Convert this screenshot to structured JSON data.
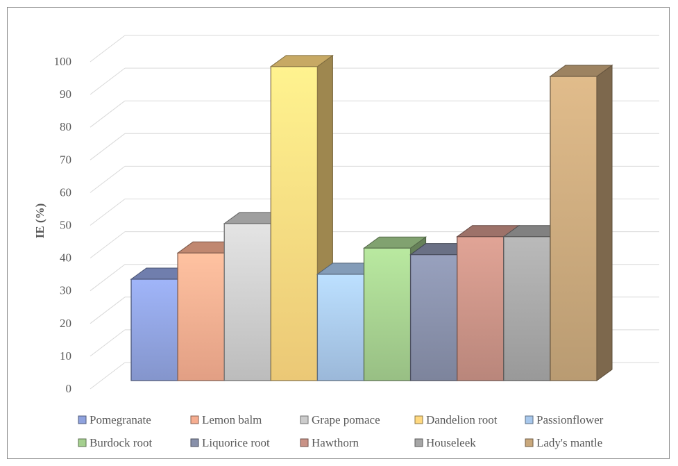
{
  "chart_data": {
    "type": "bar",
    "title": "",
    "xlabel": "",
    "ylabel": "IE (%)",
    "ylim": [
      0,
      100
    ],
    "yticks": [
      0,
      10,
      20,
      30,
      40,
      50,
      60,
      70,
      80,
      90,
      100
    ],
    "grid": true,
    "legend_position": "bottom",
    "three_d": true,
    "series": [
      {
        "name": "Pomegranate",
        "value": 31,
        "color": "#8fa2de"
      },
      {
        "name": "Lemon balm",
        "value": 39,
        "color": "#f6ad90"
      },
      {
        "name": "Grape pomace",
        "value": 48,
        "color": "#cccccc"
      },
      {
        "name": "Dandelion root",
        "value": 96,
        "color": "#ffd980"
      },
      {
        "name": "Passionflower",
        "value": 32.5,
        "color": "#a8c8ec"
      },
      {
        "name": "Burdock root",
        "value": 40.5,
        "color": "#a5d08f"
      },
      {
        "name": "Liquorice root",
        "value": 38.5,
        "color": "#8890aa"
      },
      {
        "name": "Hawthorn",
        "value": 44,
        "color": "#c99286"
      },
      {
        "name": "Houseleek",
        "value": 44,
        "color": "#a6a6a6"
      },
      {
        "name": "Lady's mantle",
        "value": 93,
        "color": "#c9a87c"
      }
    ]
  }
}
